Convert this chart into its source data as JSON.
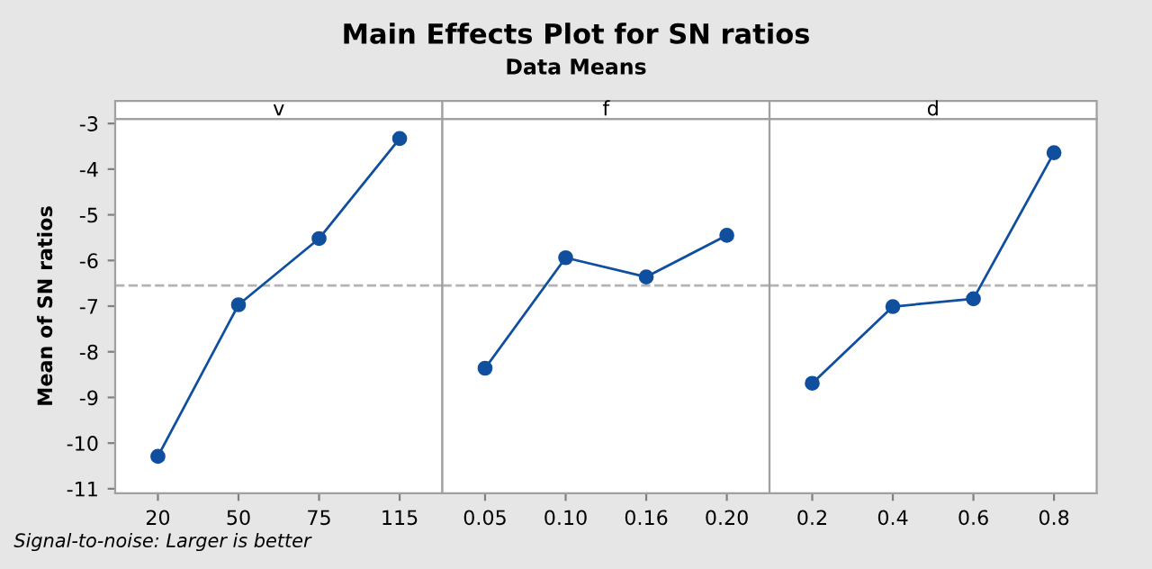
{
  "chart_data": [
    {
      "type": "line",
      "xlabel": "v",
      "ylabel": "Mean of SN ratios",
      "categories": [
        "20",
        "50",
        "75",
        "115"
      ],
      "series": [
        {
          "color": "#0f4f9e",
          "values": [
            -10.29,
            -6.97,
            -5.52,
            -3.33
          ]
        }
      ],
      "ylim": [
        -11.1,
        -2.9
      ],
      "yticks": [
        -11,
        -10,
        -9,
        -8,
        -7,
        -6,
        -5,
        -4,
        -3
      ],
      "marker": "circle",
      "grid": false,
      "ref_lines": [
        {
          "axis": "y",
          "value": -6.55,
          "color": "#b3b3b3",
          "line_style": "dashed"
        }
      ],
      "annotations": [
        "Signal-to-noise: Larger is better"
      ]
    },
    {
      "type": "line",
      "title": "Main Effects Plot for SN ratios",
      "subtitle": "Data Means",
      "xlabel": "f",
      "categories": [
        "0.05",
        "0.10",
        "0.16",
        "0.20"
      ],
      "series": [
        {
          "color": "#0f4f9e",
          "values": [
            -8.36,
            -5.94,
            -6.36,
            -5.45
          ]
        }
      ],
      "ylim": [
        -11.1,
        -2.9
      ],
      "tick_labels": "x",
      "marker": "circle",
      "grid": false,
      "ref_lines": [
        {
          "axis": "y",
          "value": -6.55,
          "color": "#b3b3b3",
          "line_style": "dashed"
        }
      ]
    },
    {
      "type": "line",
      "xlabel": "d",
      "categories": [
        "0.2",
        "0.4",
        "0.6",
        "0.8"
      ],
      "series": [
        {
          "color": "#0f4f9e",
          "values": [
            -8.69,
            -7.01,
            -6.84,
            -3.64
          ]
        }
      ],
      "ylim": [
        -11.1,
        -2.9
      ],
      "tick_labels": "x",
      "marker": "circle",
      "grid": false,
      "ref_lines": [
        {
          "axis": "y",
          "value": -6.55,
          "color": "#b3b3b3",
          "line_style": "dashed"
        }
      ]
    }
  ]
}
